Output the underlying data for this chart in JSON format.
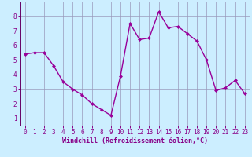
{
  "x": [
    0,
    1,
    2,
    3,
    4,
    5,
    6,
    7,
    8,
    9,
    10,
    11,
    12,
    13,
    14,
    15,
    16,
    17,
    18,
    19,
    20,
    21,
    22,
    23
  ],
  "y": [
    5.4,
    5.5,
    5.5,
    4.6,
    3.5,
    3.0,
    2.6,
    2.0,
    1.6,
    1.2,
    3.9,
    7.5,
    6.4,
    6.5,
    8.3,
    7.2,
    7.3,
    6.8,
    6.3,
    5.0,
    2.9,
    3.1,
    3.6,
    2.7
  ],
  "line_color": "#990099",
  "marker": "D",
  "marker_size": 2.0,
  "line_width": 1.0,
  "bg_color": "#cceeff",
  "grid_color": "#9999bb",
  "xlabel": "Windchill (Refroidissement éolien,°C)",
  "xlim": [
    -0.5,
    23.5
  ],
  "ylim": [
    0.5,
    9.0
  ],
  "xticks": [
    0,
    1,
    2,
    3,
    4,
    5,
    6,
    7,
    8,
    9,
    10,
    11,
    12,
    13,
    14,
    15,
    16,
    17,
    18,
    19,
    20,
    21,
    22,
    23
  ],
  "yticks": [
    1,
    2,
    3,
    4,
    5,
    6,
    7,
    8
  ],
  "tick_fontsize": 5.5,
  "xlabel_fontsize": 6.0,
  "tick_color": "#880088",
  "spine_color": "#660066"
}
